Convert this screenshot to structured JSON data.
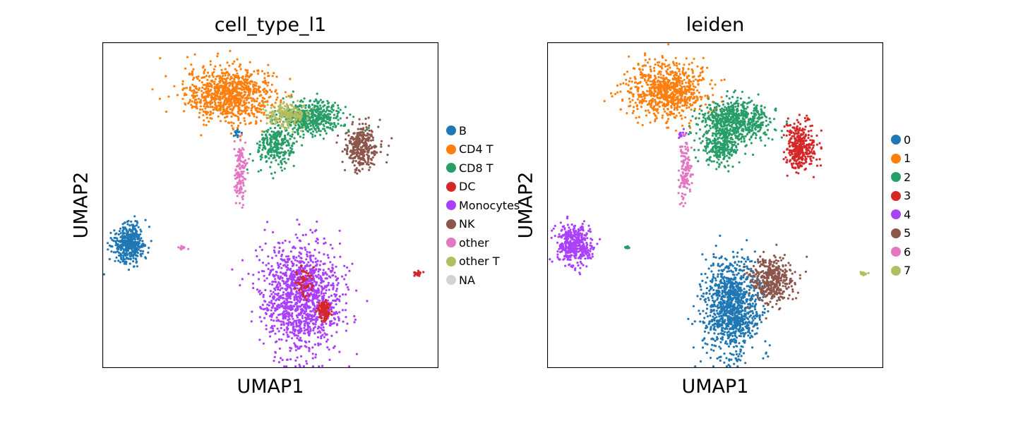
{
  "chart_data": [
    {
      "type": "scatter",
      "title": "cell_type_l1",
      "xlabel": "UMAP1",
      "ylabel": "UMAP2",
      "grid": false,
      "legend_position": "right",
      "legend": [
        {
          "label": "B",
          "color": "#1f77b4"
        },
        {
          "label": "CD4 T",
          "color": "#ff7f0e"
        },
        {
          "label": "CD8 T",
          "color": "#279e68"
        },
        {
          "label": "DC",
          "color": "#d62728"
        },
        {
          "label": "Monocytes",
          "color": "#aa40fc"
        },
        {
          "label": "NK",
          "color": "#8c564b"
        },
        {
          "label": "other",
          "color": "#e377c2"
        },
        {
          "label": "other T",
          "color": "#b5bd61"
        },
        {
          "label": "NA",
          "color": "#d3d3d3"
        }
      ],
      "clusters": [
        {
          "label": "CD4 T",
          "center": [
            0.38,
            0.84
          ],
          "spread": [
            0.11,
            0.07
          ],
          "n": 900
        },
        {
          "label": "CD8 T",
          "center": [
            0.62,
            0.77
          ],
          "spread": [
            0.08,
            0.04
          ],
          "n": 500
        },
        {
          "label": "CD8 T",
          "center": [
            0.52,
            0.68
          ],
          "spread": [
            0.05,
            0.05
          ],
          "n": 260
        },
        {
          "label": "other T",
          "center": [
            0.55,
            0.78
          ],
          "spread": [
            0.05,
            0.03
          ],
          "n": 200
        },
        {
          "label": "NK",
          "center": [
            0.77,
            0.68
          ],
          "spread": [
            0.04,
            0.06
          ],
          "n": 320
        },
        {
          "label": "B",
          "center": [
            0.08,
            0.38
          ],
          "spread": [
            0.04,
            0.05
          ],
          "n": 420
        },
        {
          "label": "B",
          "center": [
            0.4,
            0.72
          ],
          "spread": [
            0.01,
            0.01
          ],
          "n": 15
        },
        {
          "label": "other",
          "center": [
            0.41,
            0.6
          ],
          "spread": [
            0.015,
            0.08
          ],
          "n": 130
        },
        {
          "label": "other",
          "center": [
            0.24,
            0.37
          ],
          "spread": [
            0.01,
            0.004
          ],
          "n": 12
        },
        {
          "label": "Monocytes",
          "center": [
            0.59,
            0.22
          ],
          "spread": [
            0.1,
            0.13
          ],
          "n": 1300
        },
        {
          "label": "DC",
          "center": [
            0.66,
            0.18
          ],
          "spread": [
            0.015,
            0.025
          ],
          "n": 120
        },
        {
          "label": "DC",
          "center": [
            0.6,
            0.26
          ],
          "spread": [
            0.02,
            0.05
          ],
          "n": 60
        },
        {
          "label": "DC",
          "center": [
            0.94,
            0.29
          ],
          "spread": [
            0.01,
            0.005
          ],
          "n": 25
        }
      ]
    },
    {
      "type": "scatter",
      "title": "leiden",
      "xlabel": "UMAP1",
      "ylabel": "UMAP2",
      "grid": false,
      "legend_position": "right",
      "legend": [
        {
          "label": "0",
          "color": "#1f77b4"
        },
        {
          "label": "1",
          "color": "#ff7f0e"
        },
        {
          "label": "2",
          "color": "#279e68"
        },
        {
          "label": "3",
          "color": "#d62728"
        },
        {
          "label": "4",
          "color": "#aa40fc"
        },
        {
          "label": "5",
          "color": "#8c564b"
        },
        {
          "label": "6",
          "color": "#e377c2"
        },
        {
          "label": "7",
          "color": "#b5bd61"
        }
      ],
      "clusters": [
        {
          "label": "1",
          "center": [
            0.36,
            0.85
          ],
          "spread": [
            0.1,
            0.07
          ],
          "n": 800
        },
        {
          "label": "2",
          "center": [
            0.56,
            0.76
          ],
          "spread": [
            0.09,
            0.05
          ],
          "n": 650
        },
        {
          "label": "2",
          "center": [
            0.52,
            0.68
          ],
          "spread": [
            0.05,
            0.05
          ],
          "n": 260
        },
        {
          "label": "3",
          "center": [
            0.75,
            0.68
          ],
          "spread": [
            0.04,
            0.06
          ],
          "n": 350
        },
        {
          "label": "4",
          "center": [
            0.08,
            0.38
          ],
          "spread": [
            0.04,
            0.05
          ],
          "n": 420
        },
        {
          "label": "4",
          "center": [
            0.4,
            0.72
          ],
          "spread": [
            0.01,
            0.01
          ],
          "n": 15
        },
        {
          "label": "2",
          "center": [
            0.24,
            0.37
          ],
          "spread": [
            0.01,
            0.004
          ],
          "n": 12
        },
        {
          "label": "6",
          "center": [
            0.41,
            0.6
          ],
          "spread": [
            0.015,
            0.08
          ],
          "n": 130
        },
        {
          "label": "0",
          "center": [
            0.55,
            0.19
          ],
          "spread": [
            0.07,
            0.12
          ],
          "n": 1100
        },
        {
          "label": "5",
          "center": [
            0.67,
            0.27
          ],
          "spread": [
            0.05,
            0.06
          ],
          "n": 400
        },
        {
          "label": "7",
          "center": [
            0.94,
            0.29
          ],
          "spread": [
            0.01,
            0.005
          ],
          "n": 25
        }
      ]
    }
  ]
}
